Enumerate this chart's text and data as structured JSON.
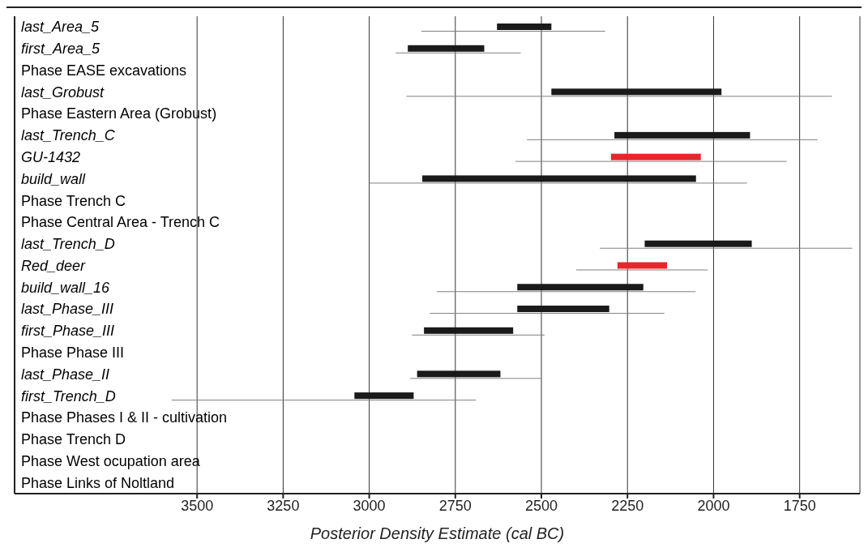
{
  "chart_data": {
    "type": "bar",
    "orientation": "horizontal",
    "xlabel": "Posterior Density Estimate (cal BC)",
    "categories": [
      "last_Area_5",
      "first_Area_5",
      "Phase EASE excavations",
      "last_Grobust",
      "Phase Eastern Area (Grobust)",
      "last_Trench_C",
      "GU-1432",
      "build_wall",
      "Phase Trench C",
      "Phase Central Area - Trench C",
      "last_Trench_D",
      "Red_deer",
      "build_wall_16",
      "last_Phase_III",
      "first_Phase_III",
      "Phase Phase III",
      "last_Phase_II",
      "first_Trench_D",
      "Phase Phases I & II - cultivation",
      "Phase Trench D",
      "Phase West ocupation area",
      "Phase Links of Noltland"
    ],
    "series": [
      {
        "color": "#808080",
        "base": [
          2849,
          2923,
          null,
          2892,
          null,
          2542,
          2575,
          3000,
          null,
          null,
          2330,
          2399,
          2804,
          2824,
          2876,
          null,
          2881,
          3574,
          null,
          null,
          null,
          null
        ],
        "values": [
          -534,
          -363,
          null,
          -1236,
          null,
          -844,
          -787,
          -1097,
          null,
          null,
          -733,
          -382,
          -752,
          -681,
          -385,
          null,
          -380,
          -884,
          null,
          null,
          null,
          null
        ]
      },
      {
        "colors": [
          "#1a1a1a",
          "#1a1a1a",
          "#1a1a1a",
          "#1a1a1a",
          "#1a1a1a",
          "#1a1a1a",
          "#e8262a",
          "#1a1a1a",
          "#1a1a1a",
          "#1a1a1a",
          "#1a1a1a",
          "#e8262a",
          "#1a1a1a",
          "#1a1a1a",
          "#1a1a1a",
          "#1a1a1a",
          "#1a1a1a",
          "#1a1a1a",
          "#1a1a1a",
          "#1a1a1a",
          "#1a1a1a",
          "#1a1a1a"
        ],
        "base": [
          2629,
          2888,
          null,
          2471,
          null,
          2288,
          2298,
          2846,
          null,
          null,
          2200,
          2279,
          2570,
          2570,
          2841,
          null,
          2861,
          3043,
          null,
          null,
          null,
          null
        ],
        "values": [
          -158,
          -222,
          null,
          -494,
          null,
          -394,
          -261,
          -795,
          null,
          null,
          -311,
          -144,
          -366,
          -267,
          -259,
          null,
          -242,
          -172,
          null,
          null,
          null,
          null
        ]
      }
    ],
    "xlim": [
      4030,
      1575
    ],
    "xticks": [
      3500,
      3250,
      3000,
      2750,
      2500,
      2250,
      2000,
      1750
    ],
    "grid": "x"
  }
}
